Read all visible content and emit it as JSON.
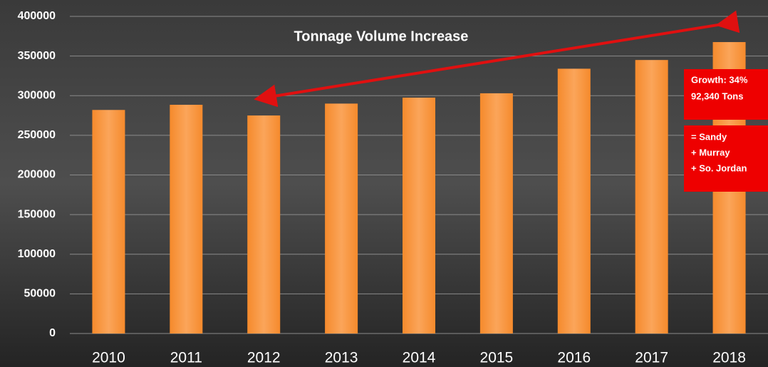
{
  "chart_data": {
    "type": "bar",
    "title": "Tonnage Volume Increase",
    "categories": [
      "2010",
      "2011",
      "2012",
      "2013",
      "2014",
      "2015",
      "2016",
      "2017",
      "2018"
    ],
    "values": [
      282000,
      288500,
      275000,
      290000,
      297500,
      303000,
      334000,
      345000,
      367600
    ],
    "color": "#f7923a",
    "ylim": [
      0,
      400000
    ],
    "yticks": [
      0,
      50000,
      100000,
      150000,
      200000,
      250000,
      300000,
      350000,
      400000
    ],
    "grid": true,
    "annotations": {
      "growth": [
        "Growth:  34%",
        "92,340 Tons"
      ],
      "areas": [
        "= Sandy",
        "+ Murray",
        "+ So. Jordan"
      ]
    }
  }
}
